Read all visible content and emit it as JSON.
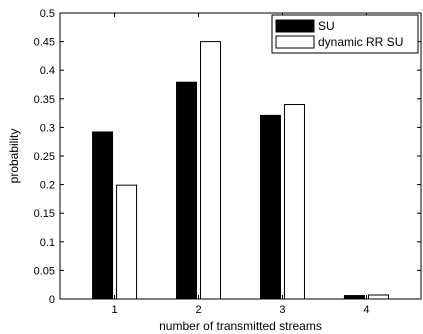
{
  "chart_data": {
    "type": "bar",
    "xlabel": "number of transmitted streams",
    "ylabel": "probability",
    "categories": [
      "1",
      "2",
      "3",
      "4"
    ],
    "series": [
      {
        "name": "SU",
        "values": [
          0.292,
          0.379,
          0.321,
          0.006
        ],
        "color": "#000000"
      },
      {
        "name": "dynamic RR SU",
        "values": [
          0.199,
          0.45,
          0.34,
          0.007
        ],
        "color": "#ffffff"
      }
    ],
    "ylim": [
      0,
      0.5
    ],
    "yticks": [
      "0",
      "0.05",
      "0.1",
      "0.15",
      "0.2",
      "0.25",
      "0.3",
      "0.35",
      "0.4",
      "0.45",
      "0.5"
    ],
    "grid": false,
    "legend_position": "top-right"
  }
}
